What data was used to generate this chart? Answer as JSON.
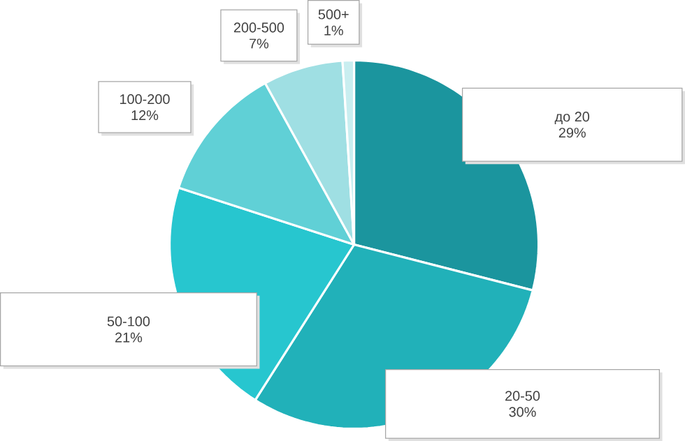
{
  "chart_data": {
    "type": "pie",
    "categories": [
      "до 20",
      "20-50",
      "50-100",
      "100-200",
      "200-500",
      "500+"
    ],
    "values": [
      29,
      30,
      21,
      12,
      7,
      1
    ],
    "value_labels": [
      "29%",
      "30%",
      "21%",
      "12%",
      "7%",
      "1%"
    ],
    "colors": [
      "#1b959e",
      "#21b1b9",
      "#27c6cf",
      "#60d0d6",
      "#9fdfe3",
      "#c9eef0"
    ]
  }
}
